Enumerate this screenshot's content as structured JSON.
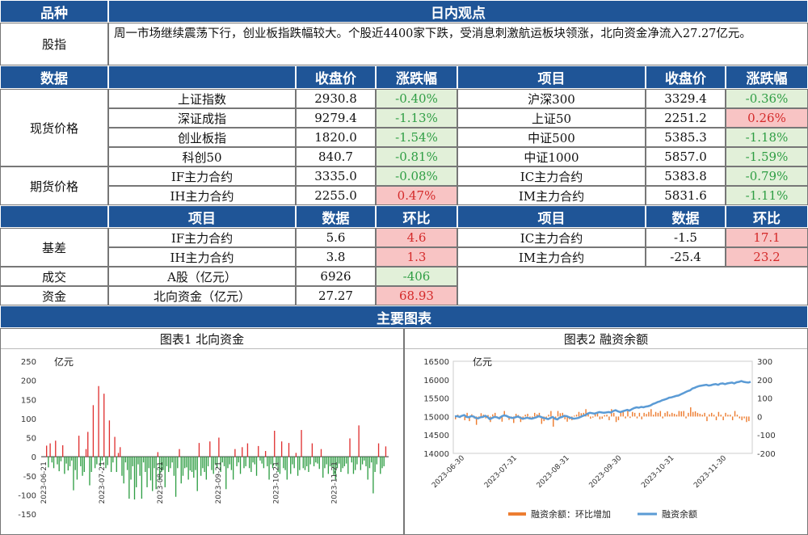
{
  "header": {
    "col1": "品种",
    "col2": "日内观点"
  },
  "index_row": {
    "label": "股指",
    "text": "周一市场继续震荡下行，创业板指跌幅较大。个股近4400家下跌，受消息刺激航运板块领涨，北向资金净流入27.27亿元。"
  },
  "price_header": {
    "c1": "数据",
    "c3": "收盘价",
    "c4": "涨跌幅",
    "c5": "项目",
    "c6": "收盘价",
    "c7": "涨跌幅"
  },
  "spot": {
    "label": "现货价格",
    "rows": [
      {
        "n1": "上证指数",
        "p1": "2930.8",
        "c1": "-0.40%",
        "n2": "沪深300",
        "p2": "3329.4",
        "c2": "-0.36%"
      },
      {
        "n1": "深证成指",
        "p1": "9279.4",
        "c1": "-1.13%",
        "n2": "上证50",
        "p2": "2251.2",
        "c2": "0.26%"
      },
      {
        "n1": "创业板指",
        "p1": "1820.0",
        "c1": "-1.54%",
        "n2": "中证500",
        "p2": "5385.3",
        "c2": "-1.18%"
      },
      {
        "n1": "科创50",
        "p1": "840.7",
        "c1": "-0.81%",
        "n2": "中证1000",
        "p2": "5857.0",
        "c2": "-1.59%"
      }
    ]
  },
  "futures": {
    "label": "期货价格",
    "rows": [
      {
        "n1": "IF主力合约",
        "p1": "3335.0",
        "c1": "-0.08%",
        "n2": "IC主力合约",
        "p2": "5383.8",
        "c2": "-0.79%"
      },
      {
        "n1": "IH主力合约",
        "p1": "2255.0",
        "c1": "0.47%",
        "n2": "IM主力合约",
        "p2": "5831.6",
        "c2": "-1.11%"
      }
    ]
  },
  "basis_header": {
    "c2": "项目",
    "c3": "数据",
    "c4": "环比",
    "c5": "项目",
    "c6": "数据",
    "c7": "环比"
  },
  "basis": {
    "label": "基差",
    "rows": [
      {
        "n1": "IF主力合约",
        "v1": "5.6",
        "d1": "4.6",
        "n2": "IC主力合约",
        "v2": "-1.5",
        "d2": "17.1"
      },
      {
        "n1": "IH主力合约",
        "v1": "3.8",
        "d1": "1.3",
        "n2": "IM主力合约",
        "v2": "-25.4",
        "d2": "23.2"
      }
    ]
  },
  "volume": {
    "label": "成交",
    "name": "A股（亿元）",
    "value": "6926",
    "change": "-406"
  },
  "funds": {
    "label": "资金",
    "name": "北向资金（亿元）",
    "value": "27.27",
    "change": "68.93"
  },
  "charts_header": "主要图表",
  "chart_data": [
    {
      "type": "bar",
      "title": "图表1  北向资金",
      "ylabel": "亿元",
      "ylim": [
        -150,
        250
      ],
      "yticks": [
        -150,
        -100,
        -50,
        0,
        50,
        100,
        150,
        200,
        250
      ],
      "xticklabels": [
        "2023-06-21",
        "2023-07-21",
        "2023-08-21",
        "2023-09-21",
        "2023-10-21",
        "2023-11-21"
      ],
      "colors": {
        "positive": "#e03131",
        "negative": "#2f9e44"
      },
      "values": [
        29,
        -28,
        35,
        -15,
        -30,
        42,
        -20,
        -38,
        -12,
        30,
        -45,
        -18,
        -36,
        -25,
        -10,
        -88,
        -35,
        -60,
        55,
        -25,
        -50,
        -40,
        20,
        65,
        -75,
        -40,
        135,
        -30,
        -20,
        185,
        -25,
        -10,
        165,
        -30,
        -22,
        95,
        -40,
        -15,
        52,
        -40,
        10,
        25,
        -50,
        -70,
        -15,
        -35,
        -110,
        -60,
        -25,
        -112,
        -80,
        -20,
        -50,
        -110,
        -15,
        -40,
        -80,
        -30,
        -62,
        -90,
        -30,
        -85,
        12,
        -62,
        -40,
        -35,
        -80,
        -25,
        -40,
        -30,
        -15,
        -50,
        -105,
        -30,
        20,
        -70,
        -50,
        -30,
        -28,
        -60,
        -36,
        -40,
        -55,
        -35,
        -90,
        36,
        -50,
        -30,
        -40,
        -60,
        -25,
        40,
        -35,
        -45,
        -20,
        -30,
        50,
        -40,
        -15,
        -25,
        -85,
        -30,
        -20,
        -35,
        -60,
        20,
        -25,
        -15,
        -45,
        25,
        -30,
        -25,
        35,
        -30,
        -40,
        -15,
        -20,
        -50,
        28,
        -10,
        -18,
        -30,
        15,
        -25,
        -60,
        -20,
        -30,
        68,
        -25,
        -40,
        -45,
        40,
        -30,
        -35,
        -60,
        36,
        -45,
        -20,
        -30,
        10,
        -50,
        -35,
        70,
        -30,
        -35,
        -25,
        -40,
        -20,
        35,
        -25,
        -15,
        -18,
        -32,
        20,
        -55,
        -30,
        -20,
        -45,
        -25,
        -28,
        -48,
        -60,
        -30,
        -18,
        -40,
        -30,
        -25,
        -18,
        -45,
        48,
        -15,
        -45,
        -35,
        -20,
        82,
        -35,
        -20,
        -10,
        -25,
        -60,
        -30,
        -15,
        -96,
        -40,
        -20,
        35,
        -45,
        -30,
        -25,
        27
      ]
    },
    {
      "type": "bar+line",
      "title": "图表2  融资余额",
      "ylabel": "亿元",
      "ylim_left": [
        14000,
        16500
      ],
      "yticks_left": [
        14000,
        14500,
        15000,
        15500,
        16000,
        16500
      ],
      "ylim_right": [
        -200,
        300
      ],
      "yticks_right": [
        -200,
        -100,
        0,
        100,
        200,
        300
      ],
      "xticklabels": [
        "2023-06-30",
        "2023-07-31",
        "2023-08-31",
        "2023-09-30",
        "2023-10-31",
        "2023-11-30"
      ],
      "legend": [
        {
          "name": "融资余额：环比增加",
          "color": "#ed7d31"
        },
        {
          "name": "融资余额",
          "color": "#5b9bd5"
        }
      ],
      "balance": [
        15000,
        15010,
        14990,
        15020,
        15040,
        14990,
        14980,
        15010,
        15000,
        14960,
        14950,
        14980,
        14990,
        15020,
        14990,
        14930,
        14960,
        14990,
        14980,
        14950,
        15000,
        15030,
        15020,
        14990,
        14970,
        14960,
        14980,
        15000,
        14970,
        14940,
        14950,
        14970,
        14950,
        14940,
        14960,
        14980,
        15010,
        14990,
        14960,
        14950,
        14930,
        14960,
        14990,
        14940,
        14920,
        14970,
        14990,
        15020,
        15010,
        14980,
        14960,
        14940,
        14950,
        14960,
        14990,
        15020,
        15040,
        15080,
        15100,
        15090,
        15080,
        15100,
        15120,
        15110,
        15100,
        15110,
        15120,
        15110,
        15150,
        15170,
        15140,
        15120,
        15140,
        15160,
        15180,
        15160,
        15200,
        15230,
        15250,
        15240,
        15260,
        15250,
        15270,
        15280,
        15300,
        15340,
        15360,
        15390,
        15410,
        15440,
        15460,
        15480,
        15510,
        15520,
        15540,
        15560,
        15570,
        15600,
        15630,
        15660,
        15690,
        15710,
        15760,
        15780,
        15810,
        15830,
        15840,
        15850,
        15860,
        15840,
        15850,
        15870,
        15880,
        15860,
        15890,
        15900,
        15880,
        15900,
        15910,
        15920,
        15900,
        15930,
        15940,
        15960,
        15940,
        15930,
        15920,
        15940
      ],
      "change": [
        -15,
        10,
        -8,
        5,
        -20,
        20,
        -25,
        12,
        -10,
        -45,
        -12,
        18,
        10,
        -10,
        8,
        -30,
        12,
        20,
        -10,
        -15,
        -28,
        30,
        8,
        -18,
        -12,
        -35,
        15,
        8,
        -30,
        -18,
        10,
        15,
        -10,
        -8,
        20,
        12,
        20,
        -40,
        -25,
        -8,
        10,
        30,
        -55,
        -12,
        30,
        18,
        20,
        -15,
        -28,
        -15,
        -20,
        5,
        10,
        25,
        18,
        20,
        40,
        20,
        -12,
        -6,
        20,
        25,
        -15,
        -12,
        8,
        10,
        -20,
        40,
        20,
        -30,
        -20,
        25,
        25,
        -10,
        30,
        -8,
        25,
        20,
        -10,
        20,
        -15,
        20,
        14,
        25,
        40,
        10,
        25,
        20,
        30,
        -10,
        20,
        28,
        12,
        20,
        15,
        10,
        30,
        28,
        30,
        -10,
        20,
        50,
        25,
        28,
        20,
        15,
        10,
        20,
        -25,
        12,
        20,
        10,
        -20,
        25,
        10,
        -20,
        20,
        10,
        10,
        -20,
        30,
        10,
        -10,
        -20,
        -10,
        -30,
        -25
      ]
    }
  ]
}
